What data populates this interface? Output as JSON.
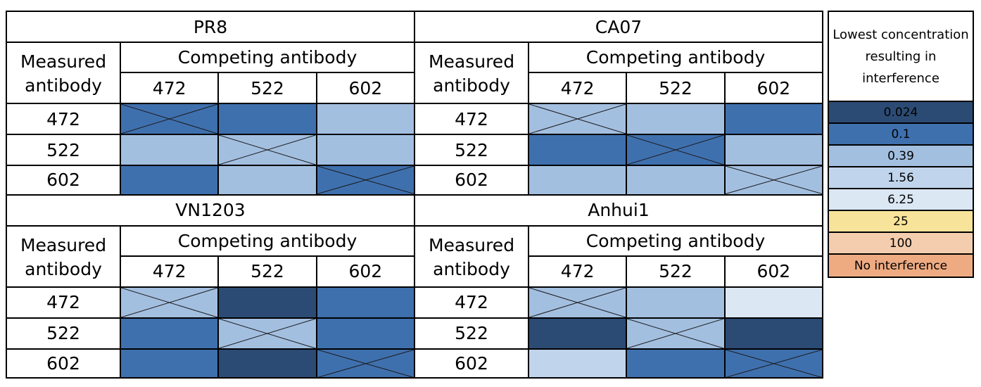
{
  "chart_data": {
    "type": "heatmap",
    "legend_placement": "right",
    "legend": {
      "title": "Lowest concentration resulting in interference",
      "levels": [
        {
          "label": "0.024",
          "color": "#2c4b74",
          "text_color": "#000000"
        },
        {
          "label": "0.1",
          "color": "#3f70ae",
          "text_color": "#000000"
        },
        {
          "label": "0.39",
          "color": "#a3bfe0",
          "text_color": "#000000"
        },
        {
          "label": "1.56",
          "color": "#c0d4ec",
          "text_color": "#000000"
        },
        {
          "label": "6.25",
          "color": "#dce7f4",
          "text_color": "#000000"
        },
        {
          "label": "25",
          "color": "#f8e39a",
          "text_color": "#000000"
        },
        {
          "label": "100",
          "color": "#f4ccae",
          "text_color": "#000000"
        },
        {
          "label": "No interference",
          "color": "#eeab82",
          "text_color": "#000000"
        }
      ]
    },
    "panels": [
      {
        "title": "PR8",
        "row_header_top": "Measured",
        "row_header_bottom": "antibody",
        "col_header": "Competing antibody",
        "columns": [
          "472",
          "522",
          "602"
        ],
        "rows": [
          "472",
          "522",
          "602"
        ],
        "values": [
          [
            "0.1",
            "0.1",
            "0.39"
          ],
          [
            "0.39",
            "0.39",
            "0.39"
          ],
          [
            "0.1",
            "0.39",
            "0.1"
          ]
        ],
        "crossed_diagonal": true
      },
      {
        "title": "CA07",
        "row_header_top": "Measured",
        "row_header_bottom": "antibody",
        "col_header": "Competing antibody",
        "columns": [
          "472",
          "522",
          "602"
        ],
        "rows": [
          "472",
          "522",
          "602"
        ],
        "values": [
          [
            "0.39",
            "0.39",
            "0.1"
          ],
          [
            "0.1",
            "0.1",
            "0.39"
          ],
          [
            "0.39",
            "0.39",
            "0.39"
          ]
        ],
        "crossed_diagonal": true
      },
      {
        "title": "VN1203",
        "row_header_top": "Measured",
        "row_header_bottom": "antibody",
        "col_header": "Competing antibody",
        "columns": [
          "472",
          "522",
          "602"
        ],
        "rows": [
          "472",
          "522",
          "602"
        ],
        "values": [
          [
            "0.39",
            "0.024",
            "0.1"
          ],
          [
            "0.1",
            "0.39",
            "0.1"
          ],
          [
            "0.1",
            "0.024",
            "0.1"
          ]
        ],
        "crossed_diagonal": true
      },
      {
        "title": "Anhui1",
        "row_header_top": "Measured",
        "row_header_bottom": "antibody",
        "col_header": "Competing antibody",
        "columns": [
          "472",
          "522",
          "602"
        ],
        "rows": [
          "472",
          "522",
          "602"
        ],
        "values": [
          [
            "0.39",
            "0.39",
            "6.25"
          ],
          [
            "0.024",
            "0.39",
            "0.024"
          ],
          [
            "1.56",
            "0.1",
            "0.1"
          ]
        ],
        "crossed_diagonal": true
      }
    ]
  }
}
